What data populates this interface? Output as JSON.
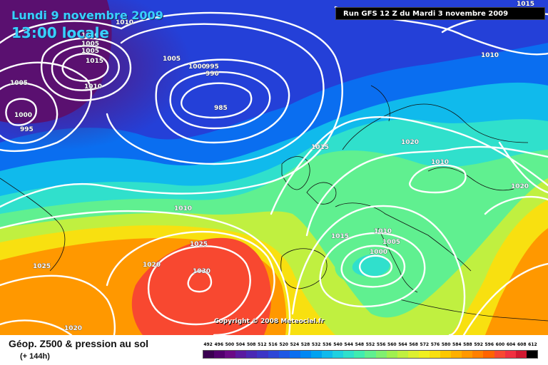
{
  "header": {
    "date": "Lundi 9 novembre 2009",
    "local_time": "13:00 locale",
    "run_info": "Run GFS 12 Z du Mardi 3 novembre 2009"
  },
  "footer": {
    "product": "Géop. Z500 & pression au sol",
    "forecast_hour": "(+ 144h)",
    "copyright": "Copyright © 2008 Meteociel.fr"
  },
  "legend": {
    "unit_hint": "Z500 geopotential (dam)",
    "values": [
      "492",
      "496",
      "500",
      "504",
      "508",
      "512",
      "516",
      "520",
      "524",
      "528",
      "532",
      "536",
      "540",
      "544",
      "548",
      "552",
      "556",
      "560",
      "564",
      "568",
      "572",
      "576",
      "580",
      "584",
      "588",
      "592",
      "596",
      "600",
      "604",
      "608",
      "612"
    ],
    "colors": [
      "#3a0050",
      "#52006e",
      "#6a0a86",
      "#5a1aa0",
      "#4a28b4",
      "#3c36c6",
      "#2e46d6",
      "#1e58e4",
      "#0a6ef0",
      "#0088f4",
      "#00a2f0",
      "#10baec",
      "#20d0e0",
      "#30e0cc",
      "#40ecb0",
      "#60f090",
      "#80f070",
      "#a0f050",
      "#c0f040",
      "#dcf030",
      "#f0f020",
      "#f8e010",
      "#fcc800",
      "#ffb000",
      "#ff9800",
      "#ff8000",
      "#ff6400",
      "#f84830",
      "#f03040",
      "#d01830",
      "#000000"
    ]
  },
  "isobar_labels": [
    {
      "id": "1000-nw",
      "text": "1000"
    },
    {
      "id": "1005-nw-a",
      "text": "1005"
    },
    {
      "id": "1015-nw",
      "text": "1015"
    },
    {
      "id": "1010-nw",
      "text": "1010"
    },
    {
      "id": "1005-nw-b",
      "text": "1005"
    },
    {
      "id": "1000-nw-b",
      "text": "1000"
    },
    {
      "id": "995-nw",
      "text": "995"
    },
    {
      "id": "1005-left",
      "text": "1005"
    },
    {
      "id": "1005-mid",
      "text": "1005"
    },
    {
      "id": "1000-mid",
      "text": "1000"
    },
    {
      "id": "995-mid",
      "text": "995"
    },
    {
      "id": "990-mid",
      "text": "990"
    },
    {
      "id": "985-mid",
      "text": "985"
    },
    {
      "id": "1010-top",
      "text": "1010"
    },
    {
      "id": "1015-topright",
      "text": "1015"
    },
    {
      "id": "1010-topright",
      "text": "1010"
    },
    {
      "id": "1015-center",
      "text": "1015"
    },
    {
      "id": "1020-center",
      "text": "1020"
    },
    {
      "id": "1010-east",
      "text": "1010"
    },
    {
      "id": "1020-east",
      "text": "1020"
    },
    {
      "id": "1010-atl",
      "text": "1010"
    },
    {
      "id": "1025-atl",
      "text": "1025"
    },
    {
      "id": "1020-atl",
      "text": "1020"
    },
    {
      "id": "1030-atl",
      "text": "1030"
    },
    {
      "id": "1025-sw",
      "text": "1025"
    },
    {
      "id": "1020-sw",
      "text": "1020"
    },
    {
      "id": "1015-fr",
      "text": "1015"
    },
    {
      "id": "1010-it",
      "text": "1010"
    },
    {
      "id": "1005-it",
      "text": "1005"
    },
    {
      "id": "1000-it",
      "text": "1000"
    }
  ]
}
